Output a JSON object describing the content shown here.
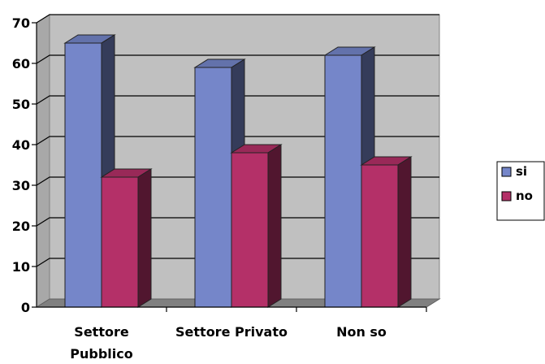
{
  "chart_data": {
    "type": "bar",
    "three_d": true,
    "categories": [
      "Settore\nPubblico",
      "Settore Privato",
      "Non so"
    ],
    "series": [
      {
        "name": "si",
        "values": [
          65,
          59,
          62
        ],
        "color": "#7586C9"
      },
      {
        "name": "no",
        "values": [
          32,
          38,
          35
        ],
        "color": "#B43068"
      }
    ],
    "ylim": [
      0,
      70
    ],
    "yticks": [
      0,
      10,
      20,
      30,
      40,
      50,
      60,
      70
    ],
    "grid": true,
    "legend_position": "right",
    "wall_color": "#C0C0C0",
    "floor_color": "#808080"
  }
}
